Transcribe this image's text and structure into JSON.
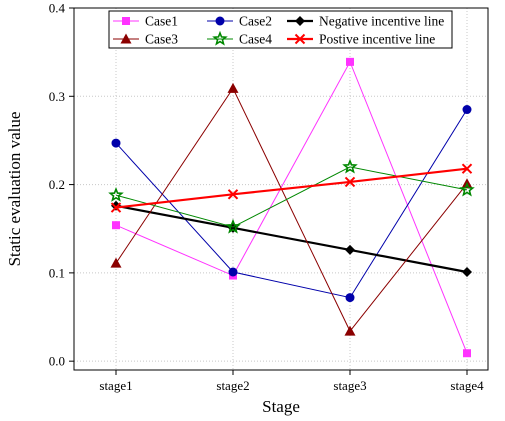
{
  "chart_data": {
    "type": "line",
    "title": "",
    "xlabel": "Stage",
    "ylabel": "Static evaluation value",
    "categories": [
      "stage1",
      "stage2",
      "stage3",
      "stage4"
    ],
    "ylim": [
      -0.01,
      0.4
    ],
    "yticks": [
      "0.0",
      "0.1",
      "0.2",
      "0.3",
      "0.4"
    ],
    "ytick_values": [
      0.0,
      0.1,
      0.2,
      0.3,
      0.4
    ],
    "grid": true,
    "legend_position": "top",
    "series": [
      {
        "name": "Case1",
        "values": [
          0.154,
          0.097,
          0.339,
          0.009
        ],
        "color": "#ff33ff",
        "marker": "square",
        "bold": false
      },
      {
        "name": "Case2",
        "values": [
          0.247,
          0.101,
          0.072,
          0.285
        ],
        "color": "#0000aa",
        "marker": "circle",
        "bold": false
      },
      {
        "name": "Negative incentive line",
        "values": [
          0.176,
          0.151,
          0.126,
          0.101
        ],
        "color": "#000000",
        "marker": "diamond",
        "bold": true
      },
      {
        "name": "Case3",
        "values": [
          0.111,
          0.309,
          0.034,
          0.201
        ],
        "color": "#8b0000",
        "marker": "triangle",
        "bold": false
      },
      {
        "name": "Case4",
        "values": [
          0.188,
          0.152,
          0.22,
          0.194
        ],
        "color": "#008800",
        "marker": "star",
        "bold": false
      },
      {
        "name": "Postive incentive line",
        "values": [
          0.174,
          0.189,
          0.203,
          0.218
        ],
        "color": "#ff0000",
        "marker": "x",
        "bold": true
      }
    ]
  }
}
